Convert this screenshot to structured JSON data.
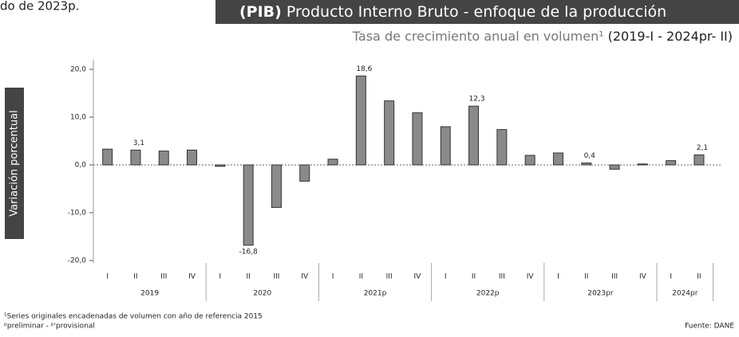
{
  "top_text": "do de 2023p.",
  "chart_data": {
    "type": "bar",
    "title_bold": "(PIB)",
    "title": "Producto Interno Bruto - enfoque de la producción",
    "subtitle": "Tasa de crecimiento anual en volumen¹",
    "subtitle_range": "(2019-I - 2024pr- II)",
    "y_label": "Variación porcentual",
    "groups": [
      {
        "label": "2019",
        "categories": [
          "I",
          "II",
          "III",
          "IV"
        ],
        "values": [
          3.3,
          3.1,
          2.9,
          3.1
        ],
        "value_labels": [
          null,
          "3,1",
          null,
          null
        ]
      },
      {
        "label": "2020",
        "categories": [
          "I",
          "II",
          "III",
          "IV"
        ],
        "values": [
          -0.3,
          -16.8,
          -8.9,
          -3.4
        ],
        "value_labels": [
          null,
          "-16,8",
          null,
          null
        ]
      },
      {
        "label": "2021p",
        "categories": [
          "I",
          "II",
          "III",
          "IV"
        ],
        "values": [
          1.2,
          18.6,
          13.4,
          10.9
        ],
        "value_labels": [
          null,
          "18,6",
          null,
          null
        ]
      },
      {
        "label": "2022p",
        "categories": [
          "I",
          "II",
          "III",
          "IV"
        ],
        "values": [
          8.0,
          12.3,
          7.4,
          2.0
        ],
        "value_labels": [
          null,
          "12,3",
          null,
          null
        ]
      },
      {
        "label": "2023pr",
        "categories": [
          "I",
          "II",
          "III",
          "IV"
        ],
        "values": [
          2.5,
          0.4,
          -0.9,
          0.2
        ],
        "value_labels": [
          null,
          "0,4",
          null,
          null
        ]
      },
      {
        "label": "2024pr",
        "categories": [
          "I",
          "II"
        ],
        "values": [
          0.9,
          2.1
        ],
        "value_labels": [
          null,
          "2,1"
        ]
      }
    ],
    "color": "#8a8a8a",
    "ylim": [
      -20.5,
      22
    ],
    "yticks": [
      {
        "value": 20,
        "label": "20,0"
      },
      {
        "value": 10,
        "label": "10,0"
      },
      {
        "value": 0,
        "label": "0,0"
      },
      {
        "value": -10,
        "label": "-10,0"
      },
      {
        "value": -20,
        "label": "-20,0"
      }
    ],
    "footnotes": [
      "¹Series originales encadenadas de volumen con año de referencia 2015",
      "ᵖpreliminar - ᵖʳprovisional"
    ],
    "source": "Fuente: DANE"
  }
}
